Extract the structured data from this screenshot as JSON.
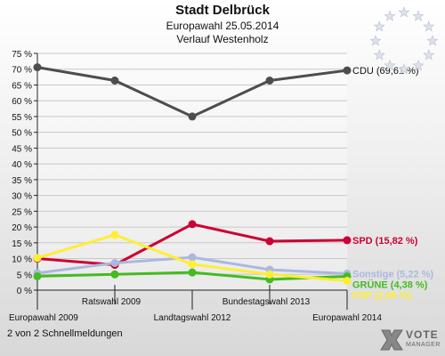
{
  "header": {
    "title": "Stadt Delbrück",
    "subtitle": "Europawahl 25.05.2014",
    "subtitle2": "Verlauf Westenholz"
  },
  "footer": {
    "note": "2 von 2 Schnellmeldungen"
  },
  "logo": {
    "line1": "VOTE",
    "line2": "MANAGER",
    "icon": "vote-x-icon"
  },
  "decoration": {
    "icon": "eu-stars-icon"
  },
  "colors": {
    "background_top": "#ffffff",
    "background_bottom": "#d8d8d8",
    "grid": "#c8c8c8",
    "axis": "#222222"
  },
  "chart_data": {
    "type": "line",
    "ylim": [
      0,
      75
    ],
    "yticks": [
      "0 %",
      "5 %",
      "10 %",
      "15 %",
      "20 %",
      "25 %",
      "30 %",
      "35 %",
      "40 %",
      "45 %",
      "50 %",
      "55 %",
      "60 %",
      "65 %",
      "70 %",
      "75 %"
    ],
    "categories": [
      "Europawahl 2009",
      "Ratswahl 2009",
      "Landtagswahl 2012",
      "Bundestagswahl 2013",
      "Europawahl 2014"
    ],
    "grid": true,
    "series": [
      {
        "name": "CDU",
        "label": "CDU (69,61 %)",
        "color": "#4d4d4d",
        "values": [
          70.6,
          66.4,
          55.0,
          66.4,
          69.61
        ]
      },
      {
        "name": "SPD",
        "label": "SPD (15,82 %)",
        "color": "#cc0033",
        "values": [
          10.0,
          8.0,
          20.9,
          15.5,
          15.82
        ]
      },
      {
        "name": "Sonstige",
        "label": "Sonstige (5,22 %)",
        "color": "#aab8e0",
        "values": [
          5.4,
          8.6,
          10.4,
          6.5,
          5.22
        ]
      },
      {
        "name": "GRÜNE",
        "label": "GRÜNE (4,38 %)",
        "color": "#44bb22",
        "values": [
          4.4,
          5.0,
          5.6,
          3.4,
          4.38
        ]
      },
      {
        "name": "FDP",
        "label": "FDP (2,95 %)",
        "color": "#ffee33",
        "values": [
          10.2,
          17.5,
          8.2,
          5.0,
          2.95
        ]
      }
    ]
  }
}
